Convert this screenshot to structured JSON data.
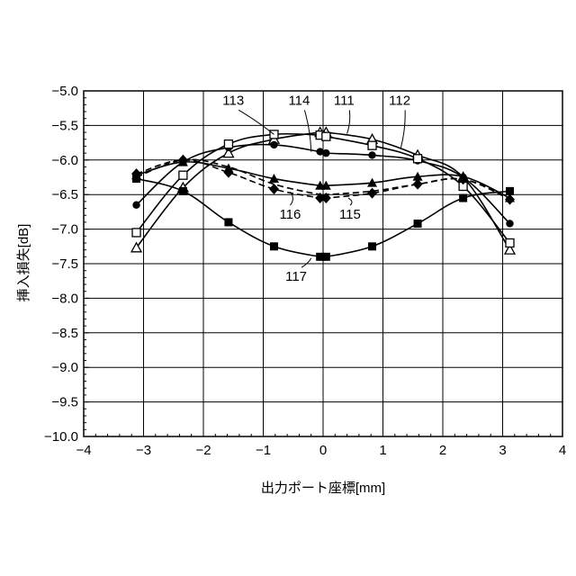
{
  "chart_data": {
    "type": "line",
    "xlabel": "出力ポート座標[mm]",
    "ylabel": "挿入損失[dB]",
    "xlim": [
      -4,
      4
    ],
    "ylim": [
      -10.0,
      -5.0
    ],
    "x_ticks": [
      -4,
      -3,
      -2,
      -1,
      0,
      1,
      2,
      3,
      4
    ],
    "x_tick_labels": [
      "−4",
      "−3",
      "−2",
      "−1",
      "0",
      "1",
      "2",
      "3",
      "4"
    ],
    "y_ticks": [
      -5.0,
      -5.5,
      -6.0,
      -6.5,
      -7.0,
      -7.5,
      -8.0,
      -8.5,
      -9.0,
      -9.5,
      -10.0
    ],
    "y_tick_labels": [
      "−5.0",
      "−5.5",
      "−6.0",
      "−6.5",
      "−7.0",
      "−7.5",
      "−8.0",
      "−8.5",
      "−9.0",
      "−9.5",
      "−10.0"
    ],
    "grid": true,
    "series": [
      {
        "name": "111",
        "marker": "triangle-open",
        "dashed": false,
        "x": [
          -3.12,
          -2.34,
          -1.58,
          -0.82,
          -0.05,
          0.05,
          0.82,
          1.58,
          2.34,
          3.12
        ],
        "y": [
          -7.27,
          -6.4,
          -5.9,
          -5.7,
          -5.6,
          -5.6,
          -5.7,
          -5.93,
          -6.25,
          -7.3
        ]
      },
      {
        "name": "112",
        "marker": "circle-filled",
        "dashed": false,
        "x": [
          -3.12,
          -2.34,
          -1.58,
          -0.82,
          -0.05,
          0.05,
          0.82,
          1.58,
          2.34,
          3.12
        ],
        "y": [
          -6.65,
          -6.03,
          -5.82,
          -5.78,
          -5.88,
          -5.9,
          -5.93,
          -6.01,
          -6.25,
          -6.92
        ]
      },
      {
        "name": "113",
        "marker": "square-open",
        "dashed": false,
        "x": [
          -3.12,
          -2.34,
          -1.58,
          -0.82,
          -0.05,
          0.05,
          0.82,
          1.58,
          2.34,
          3.12
        ],
        "y": [
          -7.05,
          -6.22,
          -5.77,
          -5.63,
          -5.64,
          -5.66,
          -5.79,
          -5.98,
          -6.38,
          -7.2
        ]
      },
      {
        "name": "114",
        "marker": "triangle-filled",
        "dashed": false,
        "x": [
          -3.12,
          -2.34,
          -1.58,
          -0.82,
          -0.05,
          0.05,
          0.82,
          1.58,
          2.34,
          3.12
        ],
        "y": [
          -6.22,
          -6.03,
          -6.12,
          -6.27,
          -6.37,
          -6.37,
          -6.33,
          -6.24,
          -6.24,
          -6.55
        ]
      },
      {
        "name": "115",
        "marker": "diamond-filled",
        "dashed": true,
        "x": [
          -3.12,
          -2.34,
          -1.58,
          -0.82,
          -0.05,
          0.05,
          0.82,
          1.58,
          2.34,
          3.12
        ],
        "y": [
          -6.2,
          -6.0,
          -6.18,
          -6.42,
          -6.55,
          -6.55,
          -6.48,
          -6.35,
          -6.28,
          -6.57
        ]
      },
      {
        "name": "116",
        "marker": "none",
        "dashed": true,
        "x": [
          -3.12,
          -2.34,
          -1.58,
          -0.82,
          -0.05,
          0.05,
          0.82,
          1.58,
          2.34,
          3.12
        ],
        "y": [
          -6.25,
          -6.0,
          -6.1,
          -6.35,
          -6.5,
          -6.5,
          -6.45,
          -6.35,
          -6.28,
          -6.55
        ]
      },
      {
        "name": "117",
        "marker": "square-filled",
        "dashed": false,
        "x": [
          -3.12,
          -2.34,
          -1.58,
          -0.82,
          -0.05,
          0.05,
          0.82,
          1.58,
          2.34,
          3.12
        ],
        "y": [
          -6.27,
          -6.45,
          -6.9,
          -7.25,
          -7.4,
          -7.4,
          -7.25,
          -6.92,
          -6.55,
          -6.45
        ]
      }
    ],
    "callouts": [
      {
        "label": "113",
        "series": "113",
        "text_at": [
          -1.5,
          -5.2
        ],
        "target": [
          -0.82,
          -5.63
        ]
      },
      {
        "label": "114",
        "series": "114",
        "text_at": [
          -0.4,
          -5.2
        ],
        "target": [
          -0.2,
          -5.88
        ]
      },
      {
        "label": "111",
        "series": "111",
        "text_at": [
          0.35,
          -5.2
        ],
        "target": [
          0.4,
          -5.62
        ]
      },
      {
        "label": "112",
        "series": "112",
        "text_at": [
          1.28,
          -5.2
        ],
        "target": [
          1.3,
          -5.82
        ]
      },
      {
        "label": "116",
        "series": "116",
        "text_at": [
          -0.55,
          -6.85
        ],
        "target": [
          -0.55,
          -6.46
        ]
      },
      {
        "label": "115",
        "series": "115",
        "text_at": [
          0.45,
          -6.85
        ],
        "target": [
          0.42,
          -6.55
        ]
      },
      {
        "label": "117",
        "series": "117",
        "text_at": [
          -0.45,
          -7.75
        ],
        "target": [
          -0.2,
          -7.42
        ]
      }
    ]
  }
}
